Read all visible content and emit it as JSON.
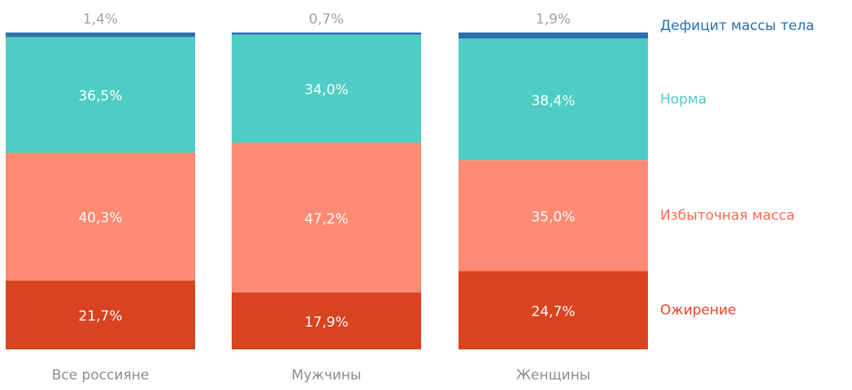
{
  "chart_data": {
    "type": "bar",
    "stacked": true,
    "normalized": "100%",
    "categories": [
      "Все россияне",
      "Мужчины",
      "Женщины"
    ],
    "series": [
      {
        "name": "Дефицит массы тела",
        "values": [
          1.4,
          0.7,
          1.9
        ],
        "labels": [
          "1,4%",
          "0,7%",
          "1,9%"
        ],
        "color": "#2a6fb0"
      },
      {
        "name": "Норма",
        "values": [
          36.5,
          34.0,
          38.4
        ],
        "labels": [
          "36,5%",
          "34,0%",
          "38,4%"
        ],
        "color": "#4fcdc4"
      },
      {
        "name": "Избыточная масса",
        "values": [
          40.3,
          47.2,
          35.0
        ],
        "labels": [
          "40,3%",
          "47,2%",
          "35,0%"
        ],
        "color": "#ff8a73"
      },
      {
        "name": "Ожирение",
        "values": [
          21.7,
          17.9,
          24.7
        ],
        "labels": [
          "21,7%",
          "17,9%",
          "24,7%"
        ],
        "color": "#d9431f"
      }
    ],
    "legend_position": "right",
    "legend_text_colors": [
      "#2a6fb0",
      "#4fcdc4",
      "#ff6a4d",
      "#e5472a"
    ],
    "label_colors": {
      "inside": "#ffffff",
      "outside_top": "#a0a0a0",
      "category": "#8c8c8c"
    },
    "grid": false,
    "title": "",
    "xlabel": "",
    "ylabel": ""
  }
}
